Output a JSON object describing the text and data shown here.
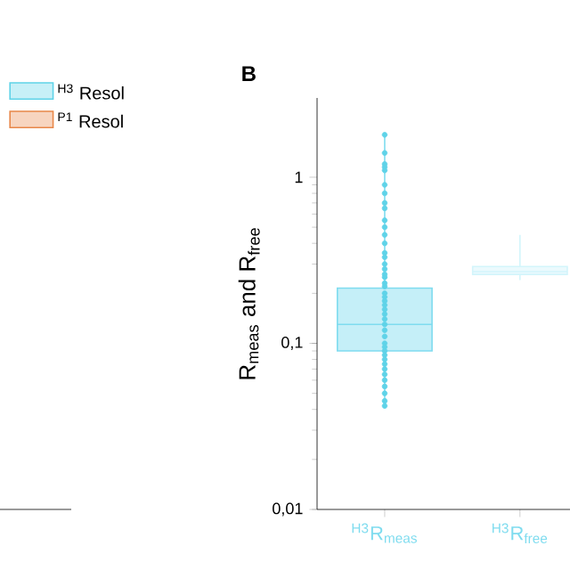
{
  "chart_data": [
    {
      "type": "other",
      "legend": "top left",
      "series": [
        {
          "name": "$^{H3}$ Resol",
          "color": "#5fd3e8"
        },
        {
          "name": "$^{P1}$ Resol",
          "color": "#e8884a"
        }
      ]
    },
    {
      "type": "box",
      "title": "B",
      "ylabel": "R$_{meas}$ and R$_{free}$",
      "log": "y",
      "categories": [
        "$^{H3}$R$_{meas}$",
        "$^{H3}$R$_{free}$"
      ],
      "colors": [
        "#7fdcef",
        "#d3f5fb"
      ],
      "boxes": [
        {
          "low": 0.042,
          "q1": 0.09,
          "median": 0.13,
          "q3": 0.215,
          "high": 1.8
        },
        {
          "low": 0.24,
          "q1": 0.26,
          "median": 0.27,
          "q3": 0.29,
          "high": 0.45
        }
      ],
      "ylim": [
        0.01,
        3
      ],
      "yticks": [
        {
          "value": 0.01,
          "label": "0,01"
        },
        {
          "value": 0.1,
          "label": "0,1"
        },
        {
          "value": 1,
          "label": "1"
        }
      ],
      "series": [
        {
          "type": "scatter",
          "color": "#5fd3e8",
          "x": [
            "$^{H3}$R$_{meas}$",
            "$^{H3}$R$_{meas}$",
            "$^{H3}$R$_{meas}$",
            "$^{H3}$R$_{meas}$",
            "$^{H3}$R$_{meas}$",
            "$^{H3}$R$_{meas}$",
            "$^{H3}$R$_{meas}$",
            "$^{H3}$R$_{meas}$",
            "$^{H3}$R$_{meas}$",
            "$^{H3}$R$_{meas}$",
            "$^{H3}$R$_{meas}$",
            "$^{H3}$R$_{meas}$",
            "$^{H3}$R$_{meas}$",
            "$^{H3}$R$_{meas}$",
            "$^{H3}$R$_{meas}$",
            "$^{H3}$R$_{meas}$",
            "$^{H3}$R$_{meas}$",
            "$^{H3}$R$_{meas}$",
            "$^{H3}$R$_{meas}$",
            "$^{H3}$R$_{meas}$",
            "$^{H3}$R$_{meas}$",
            "$^{H3}$R$_{meas}$",
            "$^{H3}$R$_{meas}$",
            "$^{H3}$R$_{meas}$",
            "$^{H3}$R$_{meas}$",
            "$^{H3}$R$_{meas}$",
            "$^{H3}$R$_{meas}$",
            "$^{H3}$R$_{meas}$",
            "$^{H3}$R$_{meas}$",
            "$^{H3}$R$_{meas}$",
            "$^{H3}$R$_{meas}$",
            "$^{H3}$R$_{meas}$",
            "$^{H3}$R$_{meas}$",
            "$^{H3}$R$_{meas}$",
            "$^{H3}$R$_{meas}$",
            "$^{H3}$R$_{meas}$",
            "$^{H3}$R$_{meas}$",
            "$^{H3}$R$_{meas}$",
            "$^{H3}$R$_{meas}$",
            "$^{H3}$R$_{meas}$",
            "$^{H3}$R$_{meas}$",
            "$^{H3}$R$_{meas}$",
            "$^{H3}$R$_{meas}$",
            "$^{H3}$R$_{meas}$",
            "$^{H3}$R$_{meas}$"
          ],
          "values": [
            1.8,
            null,
            1.4,
            1.2,
            1.15,
            1.1,
            0.9,
            0.8,
            0.7,
            0.65,
            0.55,
            0.5,
            0.45,
            0.4,
            0.35,
            0.33,
            0.3,
            0.28,
            0.26,
            0.25,
            0.23,
            0.22,
            0.2,
            0.19,
            0.18,
            0.17,
            0.16,
            0.15,
            0.14,
            0.13,
            0.12,
            0.11,
            0.1,
            0.095,
            0.09,
            0.085,
            0.08,
            0.075,
            0.07,
            0.065,
            0.06,
            0.055,
            0.05,
            0.045,
            0.042
          ]
        }
      ]
    }
  ]
}
